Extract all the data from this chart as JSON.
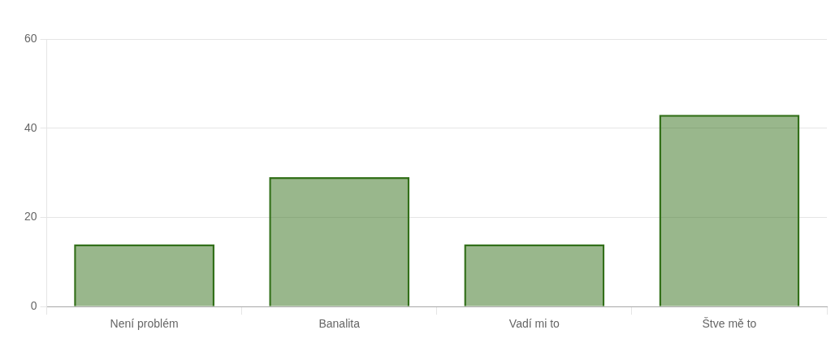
{
  "chart_data": {
    "type": "bar",
    "categories": [
      "Není problém",
      "Banalita",
      "Vadí mi to",
      "Štve mě to"
    ],
    "series": [
      {
        "color": "#33701a",
        "values": [
          14,
          29,
          14,
          43
        ]
      }
    ],
    "ylim": [
      0,
      60
    ],
    "yticks": [
      0,
      20,
      40,
      60
    ],
    "grid": "y",
    "legend": false
  }
}
